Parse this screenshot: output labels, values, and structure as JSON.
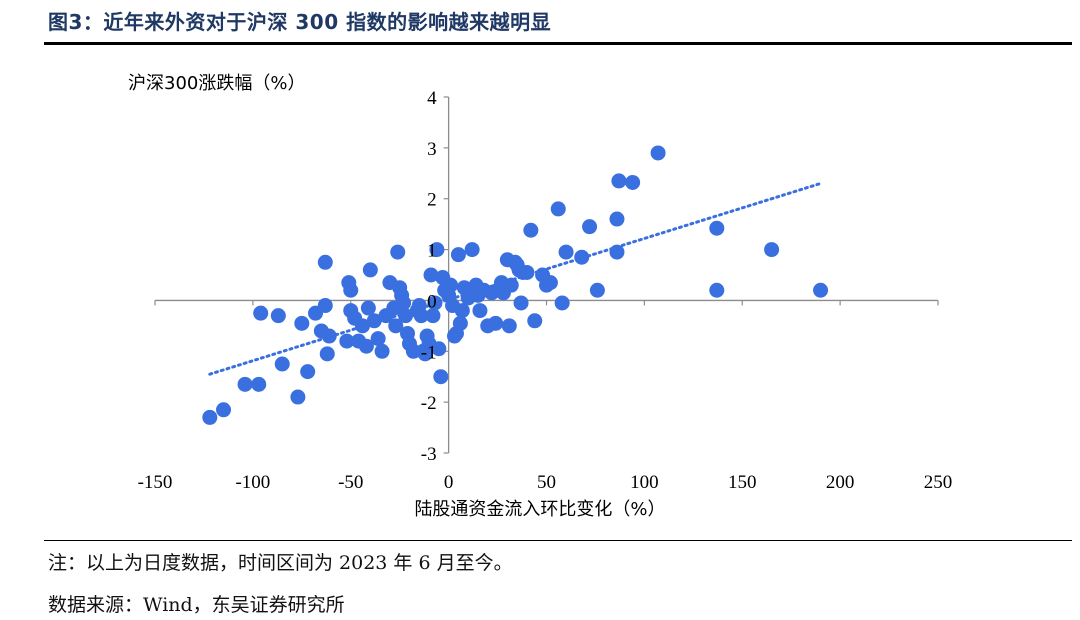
{
  "figure": {
    "title": "图3：近年来外资对于沪深 300 指数的影响越来越明显",
    "note": "注：以上为日度数据，时间区间为 2023 年 6 月至今。",
    "source": "数据来源：Wind，东吴证券研究所"
  },
  "chart_data": {
    "type": "scatter",
    "xlabel": "陆股通资金流入环比变化（%）",
    "ylabel": "沪深300涨跌幅（%）",
    "xlim": [
      -150,
      250
    ],
    "ylim": [
      -3,
      4
    ],
    "xticks": [
      "-150",
      "-100",
      "-50",
      "0",
      "50",
      "100",
      "150",
      "200",
      "250"
    ],
    "yticks": [
      "-3",
      "-2",
      "-1",
      "0",
      "1",
      "2",
      "3",
      "4"
    ],
    "marker_color": "#3a6fe0",
    "trendline": {
      "style": "dotted",
      "color": "#3a6fe0",
      "x": [
        -122,
        190
      ],
      "y": [
        -1.45,
        2.3
      ]
    },
    "series": [
      {
        "x": [
          -122,
          -115,
          -104,
          -97,
          -96,
          -85,
          -87,
          -77,
          -75,
          -72,
          -68,
          -65,
          -63,
          -63,
          -62,
          -61,
          -52,
          -51,
          -50,
          -50,
          -48,
          -46,
          -44,
          -42,
          -41,
          -40,
          -38,
          -36,
          -34,
          -32,
          -30,
          -28,
          -27,
          -26,
          -25,
          -24,
          -23,
          -22,
          -21,
          -20,
          -18,
          -16,
          -15,
          -14,
          -13,
          -12,
          -11,
          -10,
          -9,
          -8,
          -7,
          -6,
          -5,
          -4,
          -3,
          -2,
          0,
          1,
          2,
          3,
          4,
          5,
          6,
          7,
          8,
          10,
          12,
          14,
          15,
          16,
          18,
          20,
          22,
          24,
          25,
          27,
          28,
          30,
          31,
          32,
          34,
          35,
          36,
          37,
          38,
          40,
          42,
          44,
          48,
          50,
          52,
          56,
          58,
          60,
          68,
          72,
          76,
          86,
          86,
          87,
          94,
          107,
          137,
          137,
          165,
          190
        ],
        "y": [
          -2.3,
          -2.15,
          -1.65,
          -1.65,
          -0.25,
          -1.25,
          -0.3,
          -1.9,
          -0.45,
          -1.4,
          -0.25,
          -0.6,
          -0.1,
          0.75,
          -1.05,
          -0.7,
          -0.8,
          0.35,
          0.2,
          -0.2,
          -0.35,
          -0.8,
          -0.5,
          -0.9,
          -0.15,
          0.6,
          -0.4,
          -0.75,
          -1.0,
          -0.3,
          0.35,
          -0.15,
          -0.5,
          0.95,
          0.25,
          0.1,
          -0.05,
          -0.3,
          -0.65,
          -0.85,
          -1.0,
          -0.2,
          -0.1,
          -0.3,
          -1.0,
          -1.05,
          -0.7,
          -0.85,
          0.5,
          -0.3,
          -0.05,
          1.0,
          -0.95,
          -1.5,
          0.45,
          0.2,
          0.1,
          0.3,
          -0.1,
          -0.7,
          -0.65,
          0.9,
          -0.45,
          -0.2,
          0.25,
          0.05,
          1.0,
          0.3,
          0.1,
          -0.2,
          0.2,
          -0.5,
          0.15,
          -0.45,
          0.2,
          0.35,
          0.15,
          0.8,
          -0.5,
          0.3,
          0.75,
          0.7,
          0.6,
          -0.05,
          0.55,
          0.55,
          1.38,
          -0.4,
          0.5,
          0.3,
          0.35,
          1.8,
          -0.05,
          0.95,
          0.85,
          1.45,
          0.2,
          1.6,
          0.95,
          2.35,
          2.32,
          2.9,
          1.42,
          0.2,
          1.0,
          0.2
        ]
      }
    ]
  }
}
